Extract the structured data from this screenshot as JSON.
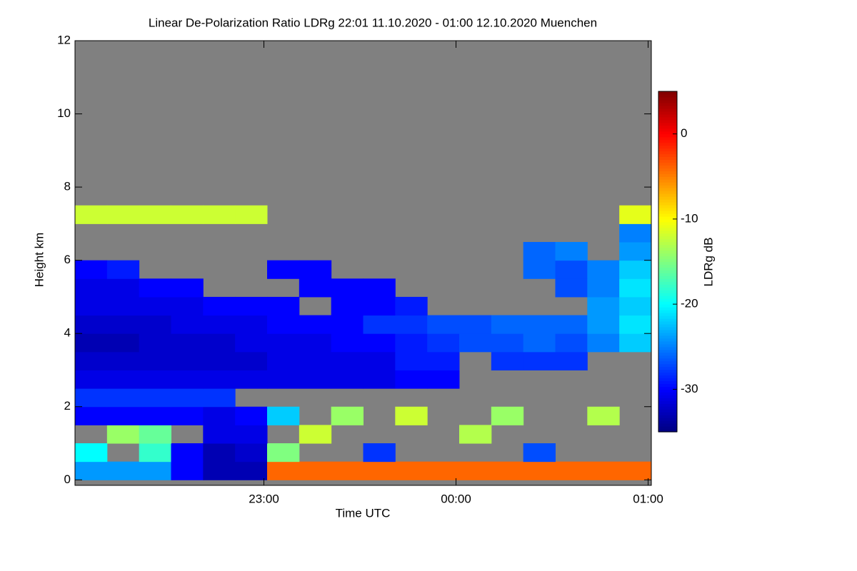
{
  "chart_data": {
    "type": "heatmap",
    "title": "Linear De-Polarization Ratio LDRg   22:01 11.10.2020 - 01:00 12.10.2020 Muenchen",
    "xlabel": "Time UTC",
    "ylabel": "Height km",
    "colorbar_label": "LDRg dB",
    "xlim": [
      1,
      181
    ],
    "xticks": [
      {
        "value": 60,
        "label": "23:00"
      },
      {
        "value": 120,
        "label": "00:00"
      },
      {
        "value": 180,
        "label": "01:00"
      }
    ],
    "ylim": [
      -0.15,
      12
    ],
    "yticks": [
      0,
      2,
      4,
      6,
      8,
      10,
      12
    ],
    "clim": [
      -35,
      5
    ],
    "cticks": [
      0,
      -10,
      -20,
      -30
    ],
    "colormap": "jet",
    "background": "#808080",
    "x_bins": [
      1,
      11,
      21,
      31,
      41,
      51,
      61,
      71,
      81,
      91,
      101,
      111,
      121,
      131,
      141,
      151,
      161,
      171,
      181
    ],
    "y_bins": [
      0,
      0.5,
      1,
      1.5,
      2,
      2.5,
      3,
      3.5,
      4,
      4.5,
      5,
      5.5,
      6,
      6.5,
      7,
      7.5,
      8,
      8.5,
      9,
      9.5,
      10,
      10.5,
      11,
      11.5,
      12
    ],
    "z": [
      [
        -24,
        -24,
        -24,
        -30,
        -33,
        -33,
        -4,
        -4,
        -4,
        -4,
        -4,
        -4,
        -4,
        -4,
        -4,
        -4,
        -4,
        -4
      ],
      [
        -20,
        null,
        -18,
        -30,
        -33,
        -32,
        -15,
        null,
        null,
        -28,
        null,
        null,
        null,
        null,
        -27,
        null,
        null,
        null
      ],
      [
        null,
        -14,
        -16,
        null,
        -31,
        -31,
        null,
        -12,
        null,
        null,
        null,
        null,
        -13,
        null,
        null,
        null,
        null,
        null
      ],
      [
        -30,
        -30,
        -30,
        -30,
        -31,
        -30,
        -22,
        null,
        -14,
        null,
        -12,
        null,
        null,
        -14,
        null,
        null,
        -13,
        null
      ],
      [
        -28,
        -28,
        -28,
        -28,
        -28,
        null,
        null,
        null,
        null,
        null,
        null,
        null,
        null,
        null,
        null,
        null,
        null,
        null
      ],
      [
        -31,
        -31,
        -31,
        -31,
        -31,
        -31,
        -31,
        -31,
        -31,
        -31,
        -30,
        -30,
        null,
        null,
        null,
        null,
        null,
        null
      ],
      [
        -32,
        -32,
        -32,
        -32,
        -32,
        -32,
        -31,
        -31,
        -31,
        -31,
        -29,
        -29,
        null,
        -28,
        -28,
        -28,
        null,
        null
      ],
      [
        -33,
        -33,
        -32,
        -32,
        -32,
        -31,
        -31,
        -31,
        -30,
        -30,
        -29,
        -28,
        -27,
        -27,
        -26,
        -27,
        -25,
        -22
      ],
      [
        -32,
        -32,
        -32,
        -31,
        -31,
        -31,
        -30,
        -30,
        -30,
        -28,
        -28,
        -27,
        -27,
        -26,
        -26,
        -26,
        -24,
        -21
      ],
      [
        -31,
        -31,
        -31,
        -31,
        -30,
        -30,
        -30,
        null,
        -30,
        -30,
        -29,
        null,
        null,
        null,
        null,
        null,
        -24,
        -22
      ],
      [
        -31,
        -31,
        -30,
        -30,
        null,
        null,
        null,
        -30,
        -30,
        -30,
        null,
        null,
        null,
        null,
        null,
        -27,
        -25,
        -21
      ],
      [
        -30,
        -29,
        null,
        null,
        null,
        null,
        -30,
        -30,
        null,
        null,
        null,
        null,
        null,
        null,
        -26,
        -27,
        -25,
        -22
      ],
      [
        null,
        null,
        null,
        null,
        null,
        null,
        null,
        null,
        null,
        null,
        null,
        null,
        null,
        null,
        -26,
        -25,
        null,
        -24
      ],
      [
        null,
        null,
        null,
        null,
        null,
        null,
        null,
        null,
        null,
        null,
        null,
        null,
        null,
        null,
        null,
        null,
        null,
        -25
      ],
      [
        -12,
        -12,
        -12,
        -12,
        -12,
        -12,
        null,
        null,
        null,
        null,
        null,
        null,
        null,
        null,
        null,
        null,
        null,
        -11
      ],
      [
        null,
        null,
        null,
        null,
        null,
        null,
        null,
        null,
        null,
        null,
        null,
        null,
        null,
        null,
        null,
        null,
        null,
        null
      ],
      [
        null,
        null,
        null,
        null,
        null,
        null,
        null,
        null,
        null,
        null,
        null,
        null,
        null,
        null,
        null,
        null,
        null,
        null
      ],
      [
        null,
        null,
        null,
        null,
        null,
        null,
        null,
        null,
        null,
        null,
        null,
        null,
        null,
        null,
        null,
        null,
        null,
        null
      ],
      [
        null,
        null,
        null,
        null,
        null,
        null,
        null,
        null,
        null,
        null,
        null,
        null,
        null,
        null,
        null,
        null,
        null,
        null
      ],
      [
        null,
        null,
        null,
        null,
        null,
        null,
        null,
        null,
        null,
        null,
        null,
        null,
        null,
        null,
        null,
        null,
        null,
        null
      ],
      [
        null,
        null,
        null,
        null,
        null,
        null,
        null,
        null,
        null,
        null,
        null,
        null,
        null,
        null,
        null,
        null,
        null,
        null
      ],
      [
        null,
        null,
        null,
        null,
        null,
        null,
        null,
        null,
        null,
        null,
        null,
        null,
        null,
        null,
        null,
        null,
        null,
        null
      ],
      [
        null,
        null,
        null,
        null,
        null,
        null,
        null,
        null,
        null,
        null,
        null,
        null,
        null,
        null,
        null,
        null,
        null,
        null
      ],
      [
        null,
        null,
        null,
        null,
        null,
        null,
        null,
        null,
        null,
        null,
        null,
        null,
        null,
        null,
        null,
        null,
        null,
        null
      ]
    ]
  }
}
